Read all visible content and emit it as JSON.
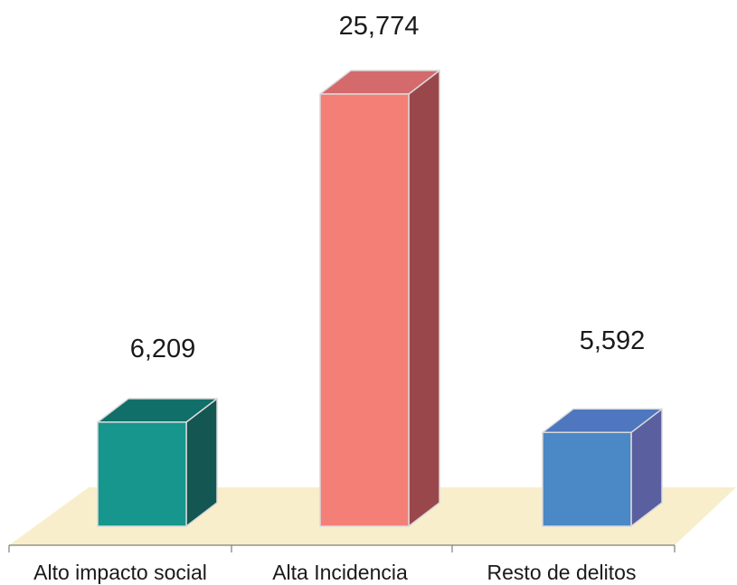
{
  "chart_data": {
    "type": "bar",
    "categories": [
      "Alto impacto social",
      "Alta Incidencia",
      "Resto de delitos"
    ],
    "values": [
      6209,
      25774,
      5592
    ],
    "value_labels": [
      "6,209",
      "25,774",
      "5,592"
    ],
    "colors": [
      {
        "front": "#16968c",
        "side": "#135652",
        "top": "#106f69"
      },
      {
        "front": "#f47f77",
        "side": "#9a474b",
        "top": "#d46a6b"
      },
      {
        "front": "#4a88c6",
        "side": "#5a5f9f",
        "top": "#4e77c0"
      }
    ],
    "floor_color": "#f9eecb",
    "grid": false,
    "legend": "none"
  }
}
